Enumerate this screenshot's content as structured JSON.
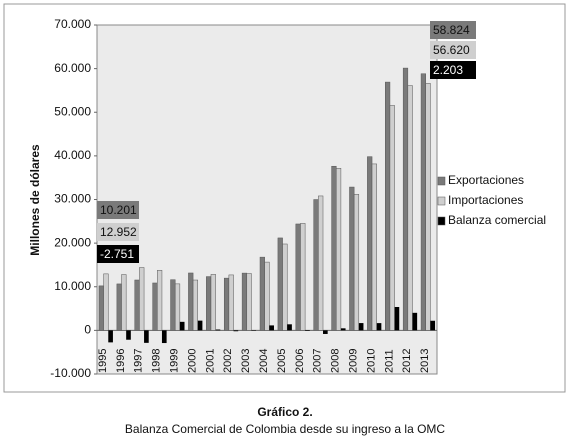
{
  "chart_data": {
    "type": "bar",
    "y_label": "Millones de dólares",
    "caption_title": "Gráfico 2.",
    "caption": "Balanza Comercial de Colombia desde su ingreso a la OMC",
    "categories": [
      "1995",
      "1996",
      "1997",
      "1998",
      "1999",
      "2000",
      "2001",
      "2002",
      "2003",
      "2004",
      "2005",
      "2006",
      "2007",
      "2008",
      "2009",
      "2010",
      "2011",
      "2012",
      "2013"
    ],
    "series": [
      {
        "name": "Exportaciones",
        "color": "#7a7a7a",
        "values": [
          10201,
          10648,
          11549,
          10866,
          11617,
          13158,
          12330,
          11975,
          13129,
          16788,
          21190,
          24391,
          29991,
          37626,
          32853,
          39820,
          56915,
          60125,
          58824
        ],
        "value_labels": [
          "10.201",
          null,
          null,
          null,
          null,
          null,
          null,
          null,
          null,
          null,
          null,
          null,
          null,
          null,
          null,
          null,
          null,
          null,
          "58.824"
        ]
      },
      {
        "name": "Importaciones",
        "color": "#cfcfcf",
        "values": [
          12952,
          12794,
          14409,
          13768,
          10659,
          11539,
          12834,
          12711,
          13026,
          15649,
          19799,
          24534,
          30816,
          37155,
          31181,
          38154,
          51556,
          56102,
          56620
        ],
        "value_labels": [
          "12.952",
          null,
          null,
          null,
          null,
          null,
          null,
          null,
          null,
          null,
          null,
          null,
          null,
          null,
          null,
          null,
          null,
          null,
          "56.620"
        ]
      },
      {
        "name": "Balanza comercial",
        "color": "#000000",
        "values": [
          -2751,
          -2146,
          -2860,
          -2902,
          1958,
          2234,
          200,
          -200,
          -100,
          1139,
          1391,
          -143,
          -825,
          471,
          1672,
          1666,
          5359,
          4023,
          2203
        ],
        "value_labels": [
          "-2.751",
          null,
          null,
          null,
          null,
          null,
          null,
          null,
          null,
          null,
          null,
          null,
          null,
          null,
          null,
          null,
          null,
          null,
          "2.203"
        ]
      }
    ],
    "ylim": [
      -10000,
      70000
    ],
    "yticks": [
      {
        "value": -10000,
        "label": "-10.000"
      },
      0,
      {
        "value": 10000,
        "label": "10.000"
      },
      {
        "value": 20000,
        "label": "20.000"
      },
      {
        "value": 30000,
        "label": "30.000"
      },
      {
        "value": 40000,
        "label": "40.000"
      },
      {
        "value": 50000,
        "label": "50.000"
      },
      {
        "value": 60000,
        "label": "60.000"
      },
      {
        "value": 70000,
        "label": "70.000"
      }
    ],
    "grid": false,
    "legend": "right"
  }
}
